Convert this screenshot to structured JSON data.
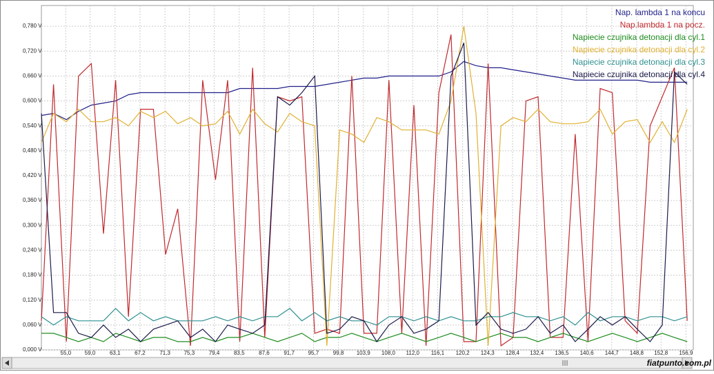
{
  "chart_data": {
    "type": "line",
    "x": [
      51.0,
      53.0,
      55.1,
      57.1,
      59.2,
      61.2,
      63.2,
      65.3,
      67.3,
      69.4,
      71.4,
      73.4,
      75.5,
      77.5,
      79.6,
      81.6,
      83.6,
      85.7,
      87.7,
      89.8,
      91.8,
      93.8,
      95.9,
      97.9,
      100.0,
      102.0,
      104.0,
      106.1,
      108.1,
      110.2,
      112.2,
      114.2,
      116.3,
      118.3,
      120.4,
      122.4,
      124.4,
      126.5,
      128.5,
      130.6,
      132.6,
      134.6,
      136.7,
      138.7,
      140.8,
      142.8,
      144.8,
      146.9,
      148.9,
      151.0,
      153.0,
      155.0,
      157.1
    ],
    "xlim": [
      51.0,
      158.1
    ],
    "xticks": [
      {
        "value": 55.0,
        "label": "55,0"
      },
      {
        "value": 59.0,
        "label": "59,0"
      },
      {
        "value": 63.1,
        "label": "63,1"
      },
      {
        "value": 67.2,
        "label": "67,2"
      },
      {
        "value": 71.3,
        "label": "71,3"
      },
      {
        "value": 75.3,
        "label": "75,3"
      },
      {
        "value": 79.4,
        "label": "79,4"
      },
      {
        "value": 83.5,
        "label": "83,5"
      },
      {
        "value": 87.6,
        "label": "87,6"
      },
      {
        "value": 91.7,
        "label": "91,7"
      },
      {
        "value": 95.7,
        "label": "95,7"
      },
      {
        "value": 99.8,
        "label": "99,8"
      },
      {
        "value": 103.9,
        "label": "103,9"
      },
      {
        "value": 108.0,
        "label": "108,0"
      },
      {
        "value": 112.0,
        "label": "112,0"
      },
      {
        "value": 116.1,
        "label": "116,1"
      },
      {
        "value": 120.2,
        "label": "120,2"
      },
      {
        "value": 124.3,
        "label": "124,3"
      },
      {
        "value": 128.4,
        "label": "128,4"
      },
      {
        "value": 132.4,
        "label": "132,4"
      },
      {
        "value": 136.5,
        "label": "136,5"
      },
      {
        "value": 140.6,
        "label": "140,6"
      },
      {
        "value": 144.7,
        "label": "144,7"
      },
      {
        "value": 148.8,
        "label": "148,8"
      },
      {
        "value": 152.8,
        "label": "152,8"
      },
      {
        "value": 156.9,
        "label": "156,9"
      }
    ],
    "ylim": [
      0,
      0.83
    ],
    "yticks": [
      {
        "value": 0,
        "label": "0,000 V"
      },
      {
        "value": 0.06,
        "label": "0,060 V"
      },
      {
        "value": 0.12,
        "label": "0,120 V"
      },
      {
        "value": 0.18,
        "label": "0,180 V"
      },
      {
        "value": 0.24,
        "label": "0,240 V"
      },
      {
        "value": 0.3,
        "label": "0,300 V"
      },
      {
        "value": 0.36,
        "label": "0,360 V"
      },
      {
        "value": 0.42,
        "label": "0,420 V"
      },
      {
        "value": 0.48,
        "label": "0,480 V"
      },
      {
        "value": 0.54,
        "label": "0,540 V"
      },
      {
        "value": 0.6,
        "label": "0,600 V"
      },
      {
        "value": 0.66,
        "label": "0,660 V"
      },
      {
        "value": 0.72,
        "label": "0,720 V"
      },
      {
        "value": 0.78,
        "label": "0,780 V"
      }
    ],
    "grid": true,
    "legend": "top-right",
    "series": [
      {
        "name": "Nap. lambda 1 na koncu",
        "color": "#1f1f8a",
        "values": [
          0.565,
          0.57,
          0.555,
          0.575,
          0.59,
          0.595,
          0.6,
          0.615,
          0.62,
          0.62,
          0.62,
          0.62,
          0.62,
          0.62,
          0.62,
          0.62,
          0.63,
          0.63,
          0.63,
          0.63,
          0.635,
          0.635,
          0.635,
          0.64,
          0.645,
          0.65,
          0.655,
          0.655,
          0.66,
          0.66,
          0.66,
          0.66,
          0.66,
          0.67,
          0.695,
          0.685,
          0.68,
          0.68,
          0.675,
          0.67,
          0.665,
          0.66,
          0.655,
          0.65,
          0.65,
          0.65,
          0.65,
          0.65,
          0.65,
          0.645,
          0.645,
          0.645,
          0.645
        ]
      },
      {
        "name": "Nap.lambda 1 na pocz.",
        "color": "#c0282d",
        "values": [
          0.07,
          0.64,
          0.02,
          0.66,
          0.69,
          0.28,
          0.65,
          0.08,
          0.58,
          0.58,
          0.23,
          0.34,
          0.01,
          0.65,
          0.41,
          0.65,
          0.02,
          0.68,
          0.03,
          0.61,
          0.6,
          0.61,
          0.04,
          0.05,
          0.04,
          0.66,
          0.04,
          0.04,
          0.65,
          0.04,
          0.59,
          0.01,
          0.62,
          0.76,
          0.02,
          0.02,
          0.69,
          0.01,
          0.03,
          0.6,
          0.61,
          0.03,
          0.03,
          0.52,
          0.02,
          0.63,
          0.62,
          0.07,
          0.04,
          0.54,
          0.61,
          0.68,
          0.07
        ]
      },
      {
        "name": "Napiecie czujnika detonacji dla cyl.1",
        "color": "#1e8c1e",
        "values": [
          0.04,
          0.04,
          0.03,
          0.02,
          0.03,
          0.02,
          0.04,
          0.03,
          0.02,
          0.03,
          0.03,
          0.02,
          0.02,
          0.03,
          0.02,
          0.03,
          0.03,
          0.04,
          0.03,
          0.02,
          0.03,
          0.04,
          0.02,
          0.03,
          0.03,
          0.04,
          0.03,
          0.02,
          0.03,
          0.04,
          0.03,
          0.02,
          0.03,
          0.04,
          0.03,
          0.02,
          0.03,
          0.04,
          0.03,
          0.03,
          0.02,
          0.03,
          0.04,
          0.03,
          0.02,
          0.03,
          0.04,
          0.03,
          0.02,
          0.03,
          0.04,
          0.03,
          0.02
        ]
      },
      {
        "name": "Napiecie czujnika detonacji dla cyl.2",
        "color": "#e0b030",
        "values": [
          0.5,
          0.57,
          0.55,
          0.58,
          0.55,
          0.55,
          0.56,
          0.54,
          0.575,
          0.56,
          0.575,
          0.545,
          0.56,
          0.54,
          0.545,
          0.575,
          0.52,
          0.58,
          0.545,
          0.525,
          0.57,
          0.55,
          0.54,
          0.01,
          0.53,
          0.52,
          0.5,
          0.56,
          0.55,
          0.53,
          0.53,
          0.53,
          0.52,
          0.6,
          0.78,
          0.57,
          0.01,
          0.54,
          0.56,
          0.55,
          0.58,
          0.55,
          0.545,
          0.545,
          0.55,
          0.58,
          0.52,
          0.55,
          0.555,
          0.5,
          0.55,
          0.5,
          0.58
        ]
      },
      {
        "name": "Napiecie czujnika detonacji dla cyl.3",
        "color": "#2f8f8f",
        "values": [
          0.08,
          0.06,
          0.08,
          0.07,
          0.07,
          0.07,
          0.1,
          0.07,
          0.09,
          0.07,
          0.08,
          0.07,
          0.07,
          0.07,
          0.08,
          0.07,
          0.08,
          0.07,
          0.08,
          0.08,
          0.1,
          0.07,
          0.09,
          0.07,
          0.08,
          0.07,
          0.07,
          0.06,
          0.08,
          0.08,
          0.07,
          0.08,
          0.07,
          0.08,
          0.07,
          0.07,
          0.08,
          0.08,
          0.09,
          0.08,
          0.08,
          0.07,
          0.08,
          0.06,
          0.09,
          0.07,
          0.08,
          0.08,
          0.07,
          0.08,
          0.08,
          0.07,
          0.08
        ]
      },
      {
        "name": "Napiecie czujnika detonacji dla cyl.4",
        "color": "#1a1a4a",
        "values": [
          0.57,
          0.09,
          0.09,
          0.04,
          0.03,
          0.06,
          0.03,
          0.05,
          0.02,
          0.05,
          0.06,
          0.07,
          0.03,
          0.05,
          0.02,
          0.06,
          0.05,
          0.04,
          0.06,
          0.61,
          0.59,
          0.62,
          0.66,
          0.04,
          0.05,
          0.08,
          0.07,
          0.02,
          0.06,
          0.08,
          0.04,
          0.05,
          0.07,
          0.66,
          0.74,
          0.06,
          0.09,
          0.05,
          0.04,
          0.05,
          0.08,
          0.04,
          0.06,
          0.02,
          0.05,
          0.08,
          0.06,
          0.08,
          0.05,
          0.02,
          0.06,
          0.67,
          0.64
        ]
      }
    ]
  },
  "watermark": "fiatpunto.com.pl"
}
